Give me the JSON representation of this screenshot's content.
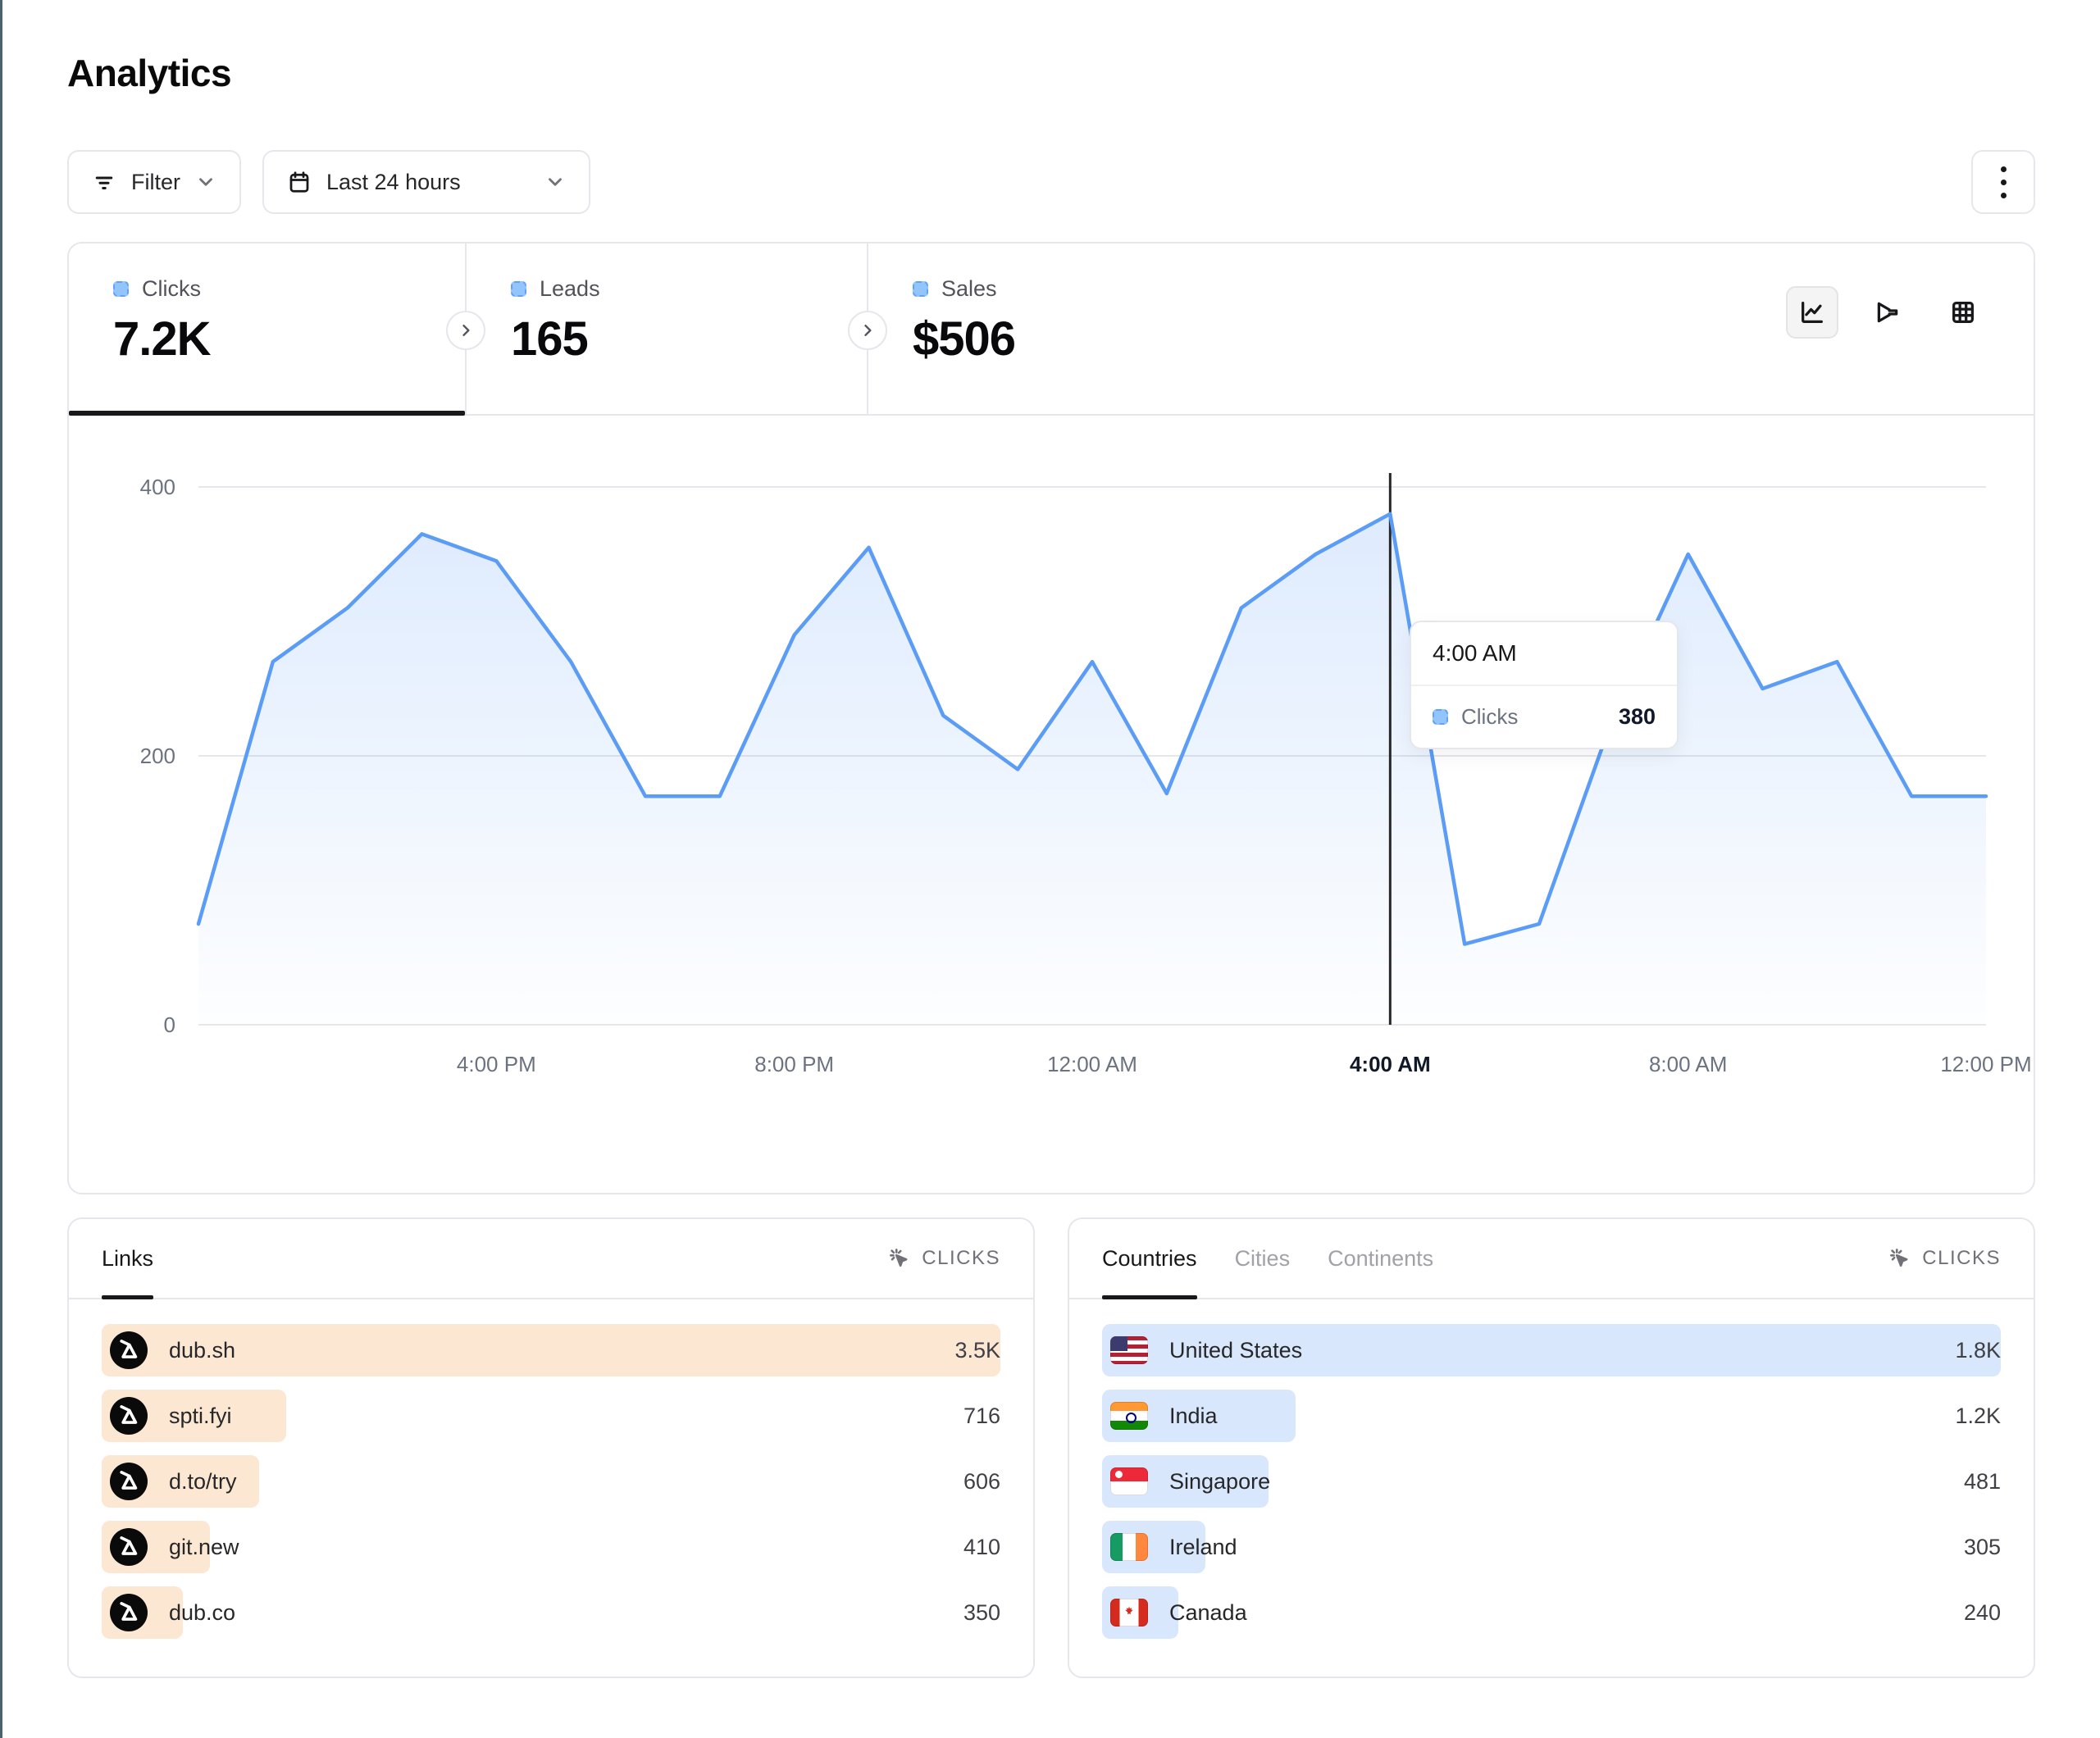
{
  "colors": {
    "left_edge": "#4a646a",
    "accent_line": "#5b9cf6",
    "area_fill_top": "rgba(91,156,246,0.20)",
    "area_fill_bottom": "rgba(91,156,246,0.01)",
    "legend_square": "#93c5fd",
    "links_bar": "#fbe7d2",
    "geo_bar": "#d8e7fb",
    "gridline": "#e5e7eb",
    "crosshair": "#27272a",
    "active_underline": "#18181b"
  },
  "header": {
    "title": "Analytics"
  },
  "toolbar": {
    "filter_label": "Filter",
    "date_range": "Last 24 hours"
  },
  "metrics": {
    "tabs": [
      {
        "label": "Clicks",
        "value": "7.2K",
        "active": true
      },
      {
        "label": "Leads",
        "value": "165",
        "active": false
      },
      {
        "label": "Sales",
        "value": "$506",
        "active": false
      }
    ]
  },
  "view_toggles": [
    {
      "icon": "line-chart-icon",
      "active": true
    },
    {
      "icon": "funnel-icon",
      "active": false
    },
    {
      "icon": "table-grid-icon",
      "active": false
    }
  ],
  "chart_data": {
    "type": "area",
    "title": "Clicks over the last 24 hours",
    "series_name": "Clicks",
    "x": [
      "12:00 PM",
      "1:00 PM",
      "2:00 PM",
      "3:00 PM",
      "4:00 PM",
      "5:00 PM",
      "6:00 PM",
      "7:00 PM",
      "8:00 PM",
      "9:00 PM",
      "10:00 PM",
      "11:00 PM",
      "12:00 AM",
      "1:00 AM",
      "2:00 AM",
      "3:00 AM",
      "4:00 AM",
      "5:00 AM",
      "6:00 AM",
      "7:00 AM",
      "8:00 AM",
      "9:00 AM",
      "10:00 AM",
      "11:00 AM",
      "12:00 PM"
    ],
    "values": [
      75,
      270,
      310,
      365,
      345,
      270,
      170,
      170,
      290,
      355,
      230,
      190,
      270,
      172,
      310,
      350,
      380,
      60,
      75,
      230,
      350,
      250,
      270,
      170,
      170
    ],
    "xticks": [
      {
        "index": 4,
        "label": "4:00 PM",
        "highlight": false
      },
      {
        "index": 8,
        "label": "8:00 PM",
        "highlight": false
      },
      {
        "index": 12,
        "label": "12:00 AM",
        "highlight": false
      },
      {
        "index": 16,
        "label": "4:00 AM",
        "highlight": true
      },
      {
        "index": 20,
        "label": "8:00 AM",
        "highlight": false
      },
      {
        "index": 24,
        "label": "12:00 PM",
        "highlight": false
      }
    ],
    "yticks": [
      0,
      200,
      400
    ],
    "ylim": [
      0,
      400
    ],
    "grid": true,
    "legend_position": "none",
    "highlight_index": 16,
    "tooltip": {
      "time": "4:00 AM",
      "metric": "Clicks",
      "value": "380"
    }
  },
  "links_panel": {
    "tab": "Links",
    "metric_label": "CLICKS",
    "rows": [
      {
        "label": "dub.sh",
        "value": "3.5K",
        "bar_pct": 100
      },
      {
        "label": "spti.fyi",
        "value": "716",
        "bar_pct": 20.5
      },
      {
        "label": "d.to/try",
        "value": "606",
        "bar_pct": 17.5
      },
      {
        "label": "git.new",
        "value": "410",
        "bar_pct": 12
      },
      {
        "label": "dub.co",
        "value": "350",
        "bar_pct": 9
      }
    ]
  },
  "geo_panel": {
    "tabs": [
      {
        "label": "Countries",
        "active": true
      },
      {
        "label": "Cities",
        "active": false
      },
      {
        "label": "Continents",
        "active": false
      }
    ],
    "metric_label": "CLICKS",
    "rows": [
      {
        "label": "United States",
        "value": "1.8K",
        "flag": "us",
        "bar_pct": 100
      },
      {
        "label": "India",
        "value": "1.2K",
        "flag": "in",
        "bar_pct": 21.5
      },
      {
        "label": "Singapore",
        "value": "481",
        "flag": "sg",
        "bar_pct": 18.5
      },
      {
        "label": "Ireland",
        "value": "305",
        "flag": "ie",
        "bar_pct": 11.5
      },
      {
        "label": "Canada",
        "value": "240",
        "flag": "ca",
        "bar_pct": 8.5
      }
    ]
  }
}
